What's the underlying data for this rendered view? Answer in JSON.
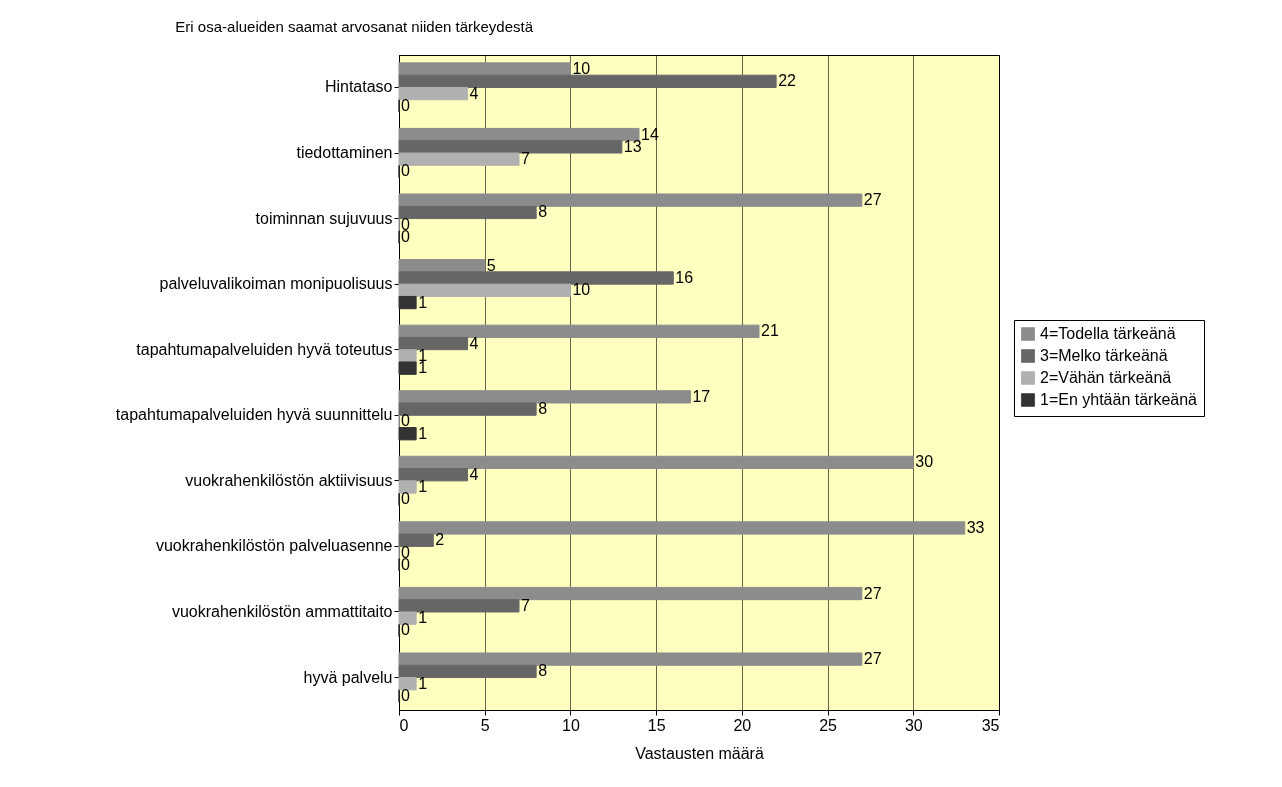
{
  "chart_data": {
    "type": "bar",
    "orientation": "horizontal",
    "title": "Eri osa-alueiden saamat arvosanat niiden tärkeydestä",
    "xlabel": "Vastausten määrä",
    "categories": [
      "Hintataso",
      "tiedottaminen",
      "toiminnan sujuvuus",
      "palveluvalikoiman monipuolisuus",
      "tapahtumapalveluiden hyvä toteutus",
      "tapahtumapalveluiden hyvä suunnittelu",
      "vuokrahenkilöstön aktiivisuus",
      "vuokrahenkilöstön palveluasenne",
      "vuokrahenkilöstön ammattitaito",
      "hyvä palvelu"
    ],
    "series": [
      {
        "name": "4=Todella tärkeänä",
        "color": "#8c8c8c",
        "values": [
          10,
          14,
          27,
          5,
          21,
          17,
          30,
          33,
          27,
          27
        ]
      },
      {
        "name": "3=Melko tärkeänä",
        "color": "#666666",
        "values": [
          22,
          13,
          8,
          16,
          4,
          8,
          4,
          2,
          7,
          8
        ]
      },
      {
        "name": "2=Vähän tärkeänä",
        "color": "#b0b0b0",
        "values": [
          4,
          7,
          0,
          10,
          1,
          0,
          1,
          0,
          1,
          1
        ]
      },
      {
        "name": "1=En yhtään tärkeänä",
        "color": "#333333",
        "values": [
          0,
          0,
          0,
          1,
          1,
          1,
          0,
          0,
          0,
          0
        ]
      }
    ],
    "xlim": [
      0,
      35
    ],
    "xticks": [
      0,
      5,
      10,
      15,
      20,
      25,
      30,
      35
    ],
    "grid": "x",
    "legend": "right",
    "data_labels": true
  }
}
